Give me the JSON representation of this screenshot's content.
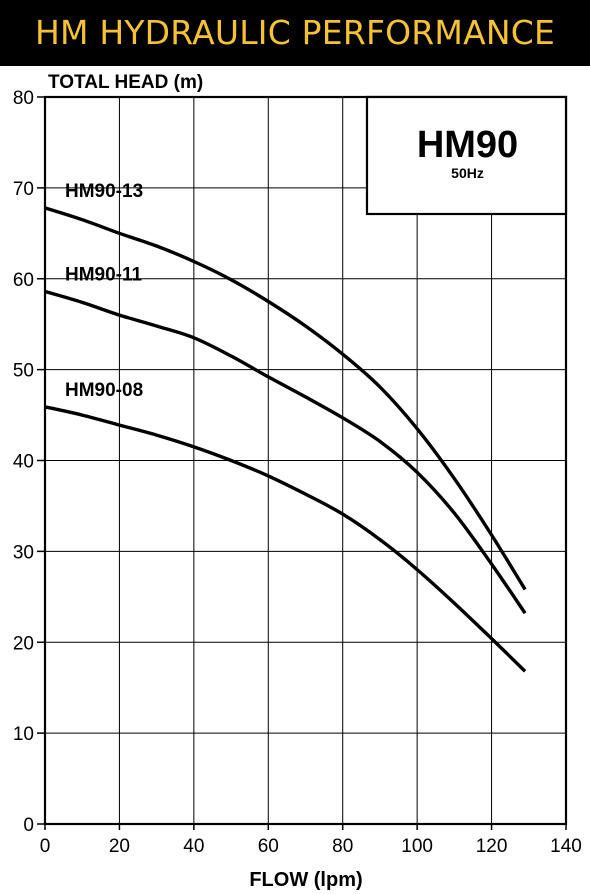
{
  "banner": {
    "title": "HM HYDRAULIC PERFORMANCE"
  },
  "colors": {
    "banner_bg": "#000000",
    "banner_text": "#f5c234",
    "line": "#000000",
    "grid": "#000000"
  },
  "chart_data": {
    "type": "line",
    "ylabel": "TOTAL HEAD (m)",
    "xlabel": "FLOW (lpm)",
    "xlim": [
      0,
      140
    ],
    "ylim": [
      0,
      80
    ],
    "xticks": [
      0,
      20,
      40,
      60,
      80,
      100,
      120,
      140
    ],
    "yticks": [
      0,
      10,
      20,
      30,
      40,
      50,
      60,
      70,
      80
    ],
    "grid": true,
    "legend": "none",
    "model_box": {
      "model": "HM90",
      "frequency": "50Hz"
    },
    "series": [
      {
        "name": "HM90-13",
        "x": [
          0,
          10,
          20,
          30,
          40,
          50,
          60,
          70,
          80,
          90,
          100,
          110,
          120,
          129
        ],
        "y": [
          67.8,
          66.5,
          65.0,
          63.6,
          61.9,
          59.9,
          57.5,
          54.8,
          51.7,
          48.1,
          43.5,
          38.0,
          31.8,
          25.8
        ]
      },
      {
        "name": "HM90-11",
        "x": [
          0,
          10,
          20,
          30,
          40,
          50,
          60,
          70,
          80,
          90,
          100,
          110,
          120,
          129
        ],
        "y": [
          58.6,
          57.4,
          56.0,
          54.8,
          53.5,
          51.5,
          49.2,
          47.0,
          44.7,
          42.1,
          38.7,
          34.2,
          28.6,
          23.2
        ]
      },
      {
        "name": "HM90-08",
        "x": [
          0,
          10,
          20,
          30,
          40,
          50,
          60,
          70,
          80,
          90,
          100,
          110,
          120,
          129
        ],
        "y": [
          45.9,
          45.0,
          43.9,
          42.8,
          41.5,
          40.0,
          38.3,
          36.3,
          34.1,
          31.3,
          28.0,
          24.3,
          20.4,
          16.8
        ]
      }
    ]
  }
}
